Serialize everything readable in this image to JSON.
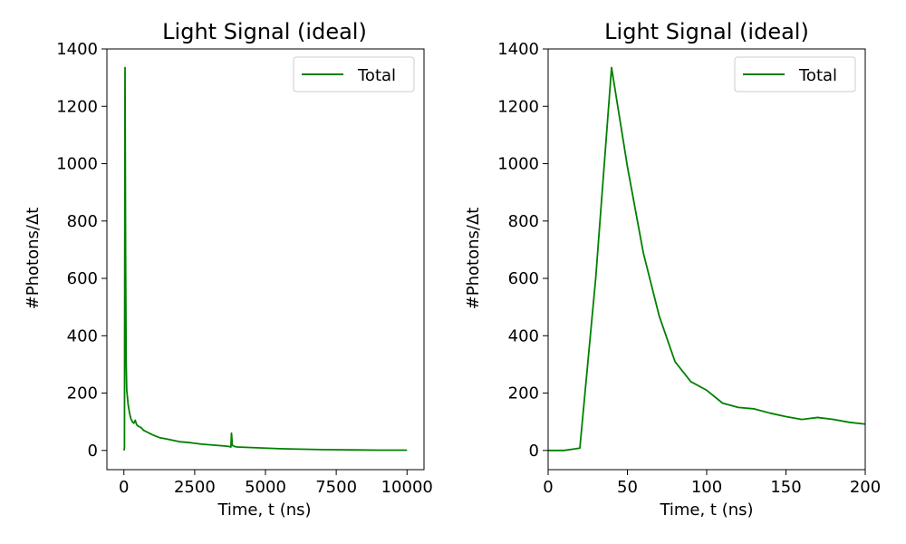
{
  "chart_data": [
    {
      "type": "line",
      "title": "Light Signal (ideal)",
      "xlabel": "Time, t (ns)",
      "ylabel": "#Photons/Δt",
      "xlim": [
        -600,
        10600
      ],
      "ylim": [
        -67,
        1400
      ],
      "xticks": [
        0,
        2500,
        5000,
        7500,
        10000
      ],
      "xtick_labels": [
        "0",
        "2500",
        "5000",
        "7500",
        "10000"
      ],
      "yticks": [
        0,
        200,
        400,
        600,
        800,
        1000,
        1200,
        1400
      ],
      "ytick_labels": [
        "0",
        "200",
        "400",
        "600",
        "800",
        "1000",
        "1200",
        "1400"
      ],
      "legend": "top-right",
      "color": "#008000",
      "series": [
        {
          "name": "Total",
          "x": [
            0,
            20,
            40,
            60,
            80,
            100,
            150,
            200,
            250,
            300,
            350,
            400,
            450,
            500,
            600,
            700,
            800,
            900,
            1000,
            1250,
            1500,
            1750,
            2000,
            2250,
            2500,
            2750,
            3000,
            3250,
            3500,
            3700,
            3780,
            3800,
            3830,
            3900,
            4000,
            4500,
            5000,
            5500,
            6000,
            7000,
            8000,
            9000,
            10000
          ],
          "y": [
            0,
            8,
            1335,
            680,
            310,
            210,
            160,
            130,
            110,
            100,
            95,
            105,
            90,
            85,
            80,
            70,
            65,
            60,
            55,
            45,
            40,
            35,
            30,
            28,
            25,
            22,
            20,
            18,
            16,
            14,
            12,
            60,
            18,
            14,
            12,
            10,
            8,
            6,
            5,
            3,
            2,
            1,
            1
          ]
        }
      ]
    },
    {
      "type": "line",
      "title": "Light Signal (ideal)",
      "xlabel": "Time, t (ns)",
      "ylabel": "#Photons/Δt",
      "xlim": [
        0,
        200
      ],
      "ylim": [
        -67,
        1400
      ],
      "xticks": [
        0,
        50,
        100,
        150,
        200
      ],
      "xtick_labels": [
        "0",
        "50",
        "100",
        "150",
        "200"
      ],
      "yticks": [
        0,
        200,
        400,
        600,
        800,
        1000,
        1200,
        1400
      ],
      "ytick_labels": [
        "0",
        "200",
        "400",
        "600",
        "800",
        "1000",
        "1200",
        "1400"
      ],
      "legend": "top-right",
      "color": "#008000",
      "series": [
        {
          "name": "Total",
          "x": [
            0,
            10,
            20,
            30,
            40,
            50,
            60,
            70,
            80,
            90,
            100,
            110,
            120,
            130,
            140,
            150,
            160,
            170,
            180,
            190,
            200
          ],
          "y": [
            0,
            0,
            8,
            600,
            1335,
            990,
            690,
            470,
            310,
            240,
            210,
            165,
            150,
            145,
            130,
            118,
            108,
            115,
            108,
            98,
            92
          ]
        }
      ]
    }
  ]
}
